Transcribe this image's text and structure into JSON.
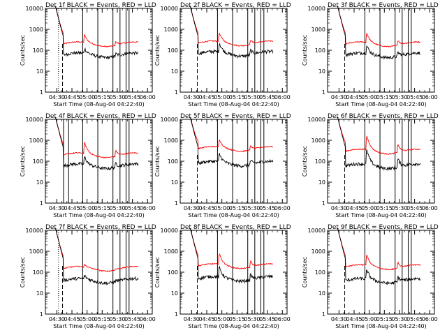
{
  "chart_data": {
    "type": "line",
    "xlabel": "Start Time (08-Aug-04 04:22:40)",
    "ylabel": "Counts/sec",
    "x_ticks": [
      "04:30",
      "04:45",
      "05:00",
      "05:15",
      "05:30",
      "05:45",
      "06:00"
    ],
    "y_ticks": [
      "1",
      "10",
      "100",
      "1000",
      "10000"
    ],
    "y_scale": "log",
    "ylim": [
      1,
      10000
    ],
    "xlim_minutes_since_start": [
      -4,
      102
    ],
    "grid": false,
    "colors": {
      "events": "#000000",
      "lld": "#ff0000"
    },
    "panels": [
      {
        "title": "Det 1f BLACK = Events, RED = LLD",
        "events": {
          "base": 60,
          "peak": 110
        },
        "lld": {
          "base": 200,
          "peak": 500
        },
        "markers_solid": [
          33,
          48,
          63,
          70,
          76,
          79
        ],
        "markers_dotted": [
          9
        ],
        "markers_dashed": [
          13
        ]
      },
      {
        "title": "Det 2f BLACK = Events, RED = LLD",
        "events": {
          "base": 70,
          "peak": 200
        },
        "lld": {
          "base": 220,
          "peak": 600
        },
        "markers_solid": [
          33,
          48,
          63,
          70,
          76,
          79
        ],
        "markers_dotted": [],
        "markers_dashed": [
          13
        ]
      },
      {
        "title": "Det 3f BLACK = Events, RED = LLD",
        "events": {
          "base": 60,
          "peak": 150
        },
        "lld": {
          "base": 200,
          "peak": 600
        },
        "markers_solid": [
          33,
          48,
          63,
          70,
          76,
          79
        ],
        "markers_dotted": [],
        "markers_dashed": [
          13
        ]
      },
      {
        "title": "Det 4f BLACK = Events, RED = LLD",
        "events": {
          "base": 60,
          "peak": 150
        },
        "lld": {
          "base": 200,
          "peak": 700
        },
        "markers_solid": [
          14,
          19,
          33,
          48,
          63,
          70,
          76,
          79
        ],
        "markers_dotted": [],
        "markers_dashed": []
      },
      {
        "title": "Det 5f BLACK = Events, RED = LLD",
        "events": {
          "base": 80,
          "peak": 200
        },
        "lld": {
          "base": 400,
          "peak": 1000
        },
        "markers_solid": [
          33,
          48,
          63,
          70,
          76,
          79
        ],
        "markers_dotted": [],
        "markers_dashed": [
          13
        ]
      },
      {
        "title": "Det 6f BLACK = Events, RED = LLD",
        "events": {
          "base": 60,
          "peak": 300
        },
        "lld": {
          "base": 300,
          "peak": 1500
        },
        "markers_solid": [
          33,
          48,
          63,
          70,
          76,
          79
        ],
        "markers_dotted": [],
        "markers_dashed": [
          13
        ]
      },
      {
        "title": "Det 7f BLACK = Events, RED = LLD",
        "events": {
          "base": 40,
          "peak": 60
        },
        "lld": {
          "base": 150,
          "peak": 200
        },
        "markers_solid": [
          33,
          48,
          63,
          70,
          76,
          79
        ],
        "markers_dotted": [
          9
        ],
        "markers_dashed": [
          13
        ]
      },
      {
        "title": "Det 8f BLACK = Events, RED = LLD",
        "events": {
          "base": 50,
          "peak": 150
        },
        "lld": {
          "base": 200,
          "peak": 700
        },
        "markers_solid": [
          33,
          48,
          63,
          70,
          76,
          79
        ],
        "markers_dotted": [],
        "markers_dashed": [
          13
        ]
      },
      {
        "title": "Det 9f BLACK = Events, RED = LLD",
        "events": {
          "base": 40,
          "peak": 120
        },
        "lld": {
          "base": 180,
          "peak": 600
        },
        "markers_solid": [
          33,
          48,
          63,
          70,
          76,
          79
        ],
        "markers_dotted": [],
        "markers_dashed": [
          13
        ]
      }
    ]
  }
}
